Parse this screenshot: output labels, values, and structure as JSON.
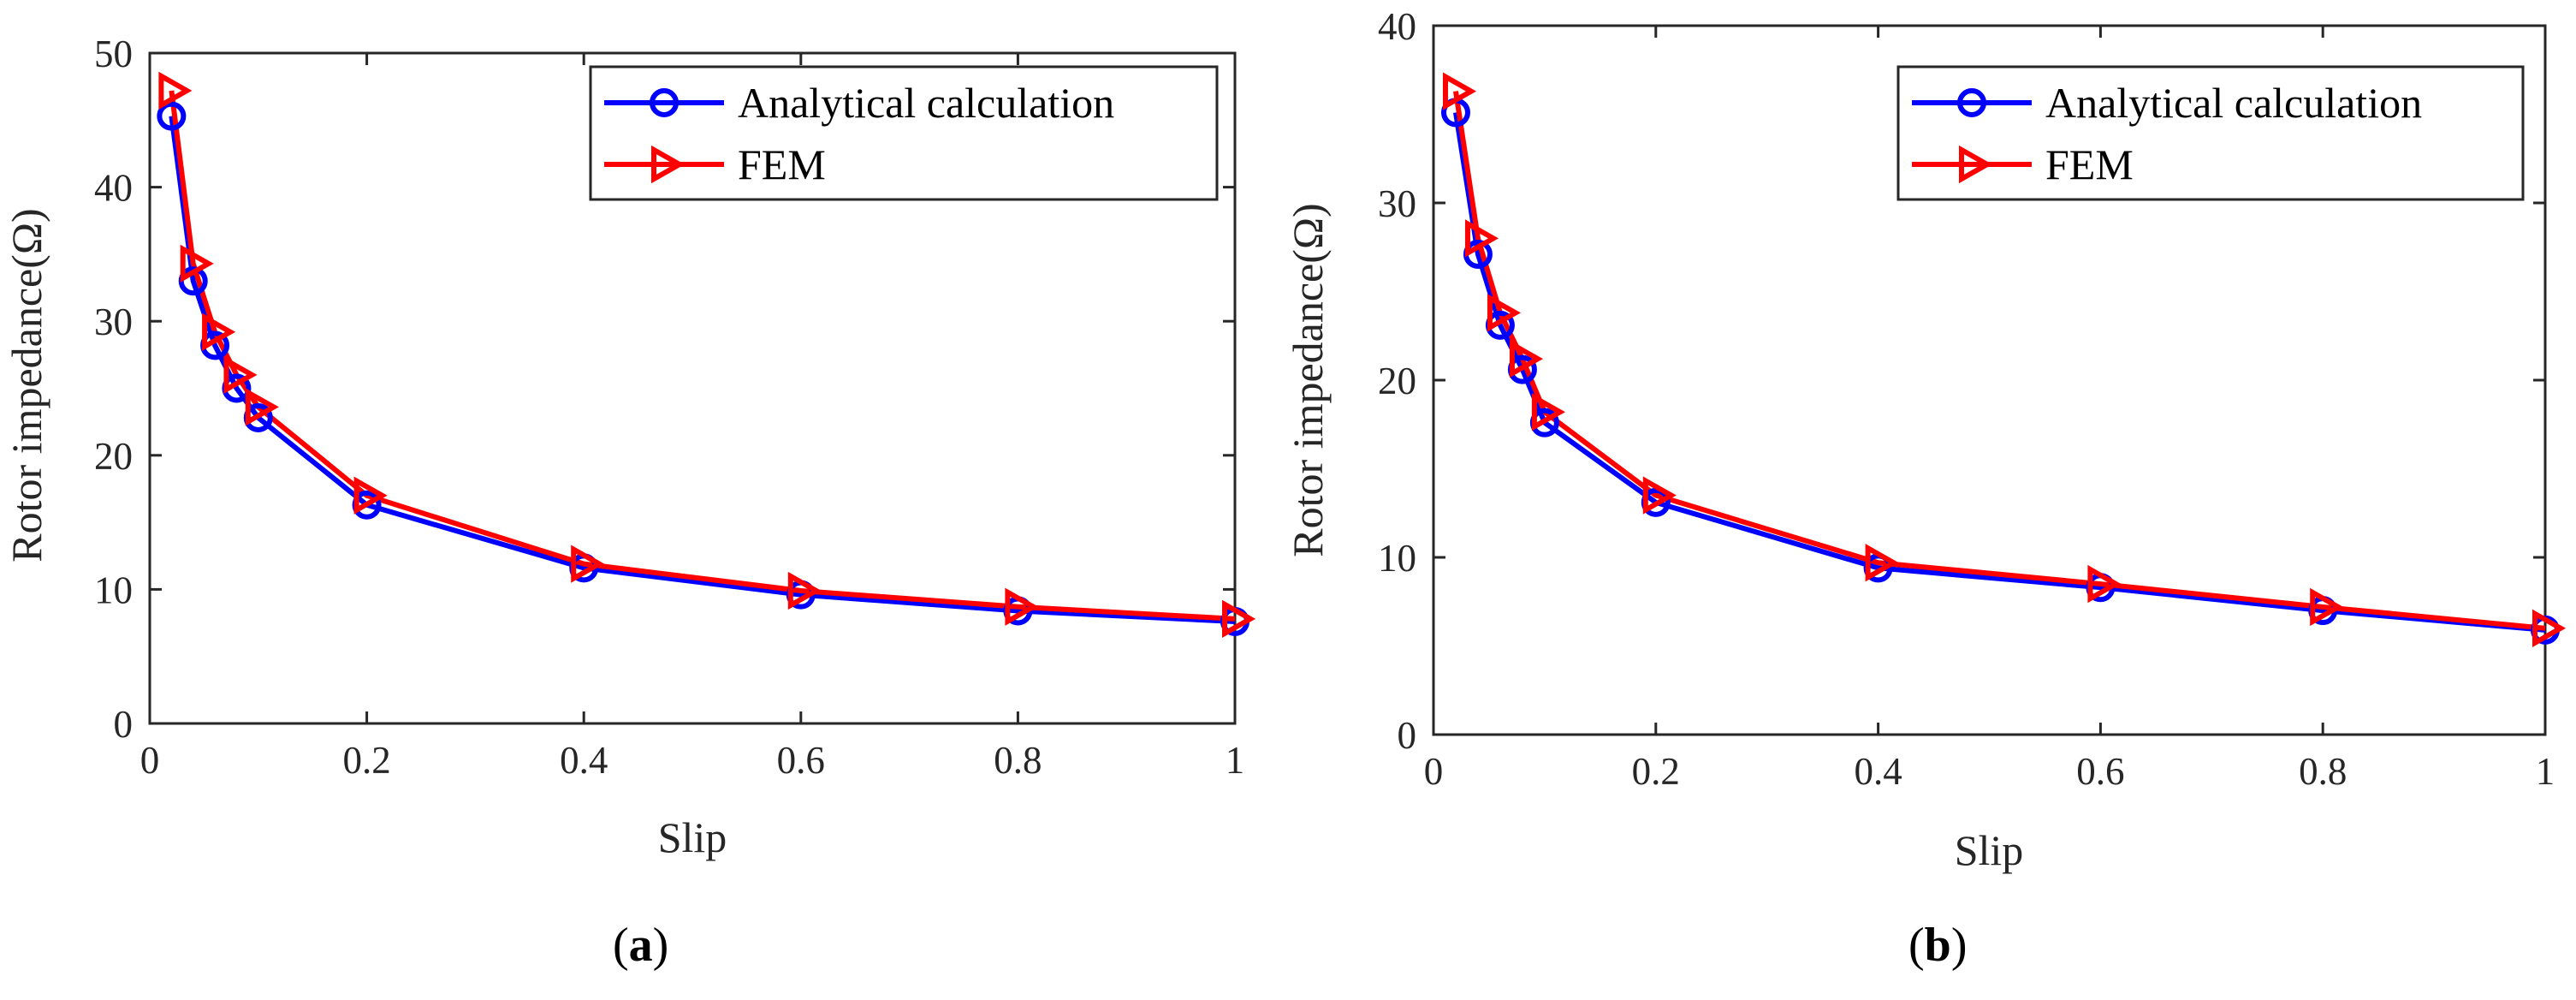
{
  "colors": {
    "analytical": "#0000ff",
    "fem": "#ff0000",
    "axis": "#262626"
  },
  "chart_data": [
    {
      "type": "line",
      "caption": {
        "open": "(",
        "letter": "a",
        "close": ")"
      },
      "xlabel": "Slip",
      "ylabel": "Rotor impedance(Ω)",
      "xlim": [
        0,
        1
      ],
      "ylim": [
        0,
        50
      ],
      "xticks": [
        0,
        0.2,
        0.4,
        0.6,
        0.8,
        1
      ],
      "xtick_labels": [
        "0",
        "0.2",
        "0.4",
        "0.6",
        "0.8",
        "1"
      ],
      "yticks": [
        0,
        10,
        20,
        30,
        40,
        50
      ],
      "ytick_labels": [
        "0",
        "10",
        "20",
        "30",
        "40",
        "50"
      ],
      "legend_position": "top-right",
      "series": [
        {
          "name": "Analytical calculation",
          "marker": "circle",
          "x": [
            0.02,
            0.04,
            0.06,
            0.08,
            0.1,
            0.2,
            0.4,
            0.6,
            0.8,
            1.0
          ],
          "y": [
            45.3,
            33.0,
            28.2,
            25.0,
            22.8,
            16.3,
            11.6,
            9.6,
            8.4,
            7.6
          ]
        },
        {
          "name": "FEM",
          "marker": "triangle-right",
          "x": [
            0.02,
            0.04,
            0.06,
            0.08,
            0.1,
            0.2,
            0.4,
            0.6,
            0.8,
            1.0
          ],
          "y": [
            47.2,
            34.3,
            29.2,
            26.0,
            23.6,
            17.0,
            11.9,
            9.9,
            8.7,
            7.8
          ]
        }
      ]
    },
    {
      "type": "line",
      "caption": {
        "open": "(",
        "letter": "b",
        "close": ")"
      },
      "xlabel": "Slip",
      "ylabel": "Rotor impedance(Ω)",
      "xlim": [
        0,
        1
      ],
      "ylim": [
        0,
        40
      ],
      "xticks": [
        0,
        0.2,
        0.4,
        0.6,
        0.8,
        1
      ],
      "xtick_labels": [
        "0",
        "0.2",
        "0.4",
        "0.6",
        "0.8",
        "1"
      ],
      "yticks": [
        0,
        10,
        20,
        30,
        40
      ],
      "ytick_labels": [
        "0",
        "10",
        "20",
        "30",
        "40"
      ],
      "legend_position": "top-right",
      "series": [
        {
          "name": "Analytical calculation",
          "marker": "circle",
          "x": [
            0.02,
            0.04,
            0.06,
            0.08,
            0.1,
            0.2,
            0.4,
            0.6,
            0.8,
            1.0
          ],
          "y": [
            35.1,
            27.1,
            23.1,
            20.6,
            17.6,
            13.1,
            9.4,
            8.3,
            7.0,
            5.9
          ]
        },
        {
          "name": "FEM",
          "marker": "triangle-right",
          "x": [
            0.02,
            0.04,
            0.06,
            0.08,
            0.1,
            0.2,
            0.4,
            0.6,
            0.8,
            1.0
          ],
          "y": [
            36.3,
            28.0,
            23.8,
            21.2,
            18.2,
            13.5,
            9.7,
            8.5,
            7.2,
            6.0
          ]
        }
      ]
    }
  ]
}
